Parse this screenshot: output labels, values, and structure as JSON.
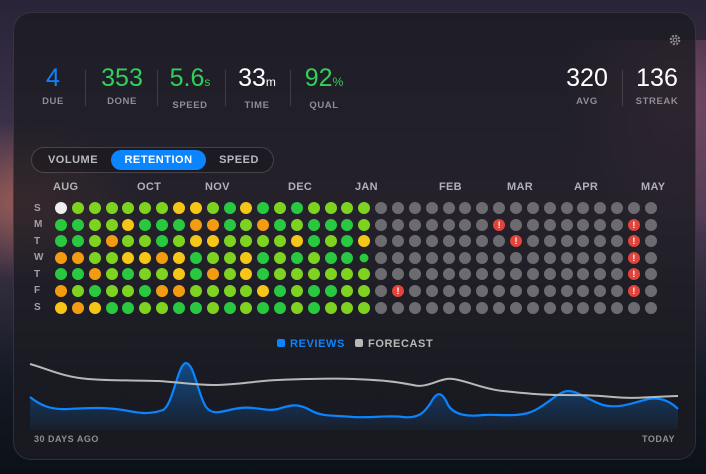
{
  "stats_left": [
    {
      "value": "4",
      "unit": "",
      "label": "DUE",
      "color": "#0a84ff"
    },
    {
      "value": "353",
      "unit": "",
      "label": "DONE",
      "color": "#30d158"
    },
    {
      "value": "5.6",
      "unit": "s",
      "label": "SPEED",
      "color": "#30d158"
    },
    {
      "value": "33",
      "unit": "m",
      "label": "TIME",
      "color": "#ffffff"
    },
    {
      "value": "92",
      "unit": "%",
      "label": "QUAL",
      "color": "#30d158"
    }
  ],
  "stats_right": [
    {
      "value": "320",
      "unit": "",
      "label": "AVG",
      "color": "#ffffff"
    },
    {
      "value": "136",
      "unit": "",
      "label": "STREAK",
      "color": "#ffffff"
    }
  ],
  "tabs": [
    {
      "label": "VOLUME",
      "active": false
    },
    {
      "label": "RETENTION",
      "active": true
    },
    {
      "label": "SPEED",
      "active": false
    }
  ],
  "months": [
    "AUG",
    "OCT",
    "NOV",
    "DEC",
    "JAN",
    "FEB",
    "MAR",
    "APR",
    "MAY"
  ],
  "weekdays": [
    "S",
    "M",
    "T",
    "W",
    "T",
    "F",
    "S"
  ],
  "heatmap": {
    "colors": {
      "w": "#eeeeee",
      "g": "#28c840",
      "l": "#7ed321",
      "y": "#f5c518",
      "o": "#f39c12",
      "x": "#6c6c70"
    },
    "rows": [
      "wllllllyylgyglgllllxxxxxxxxxxxxxxxxx",
      "ggllygggoogloglggglxxxxxxx!xxxxxxx!xxxxxxx",
      "gglollglyyllllyglgyxxxxxxxx!xxxxxx!xxxxxxx",
      "oollyyoygllyglglggGxxxxxxxxxxxxxxx!xxxxxxx",
      "ggolgllygolygllllllxxxxxxxxxxxxxxx!xxxxxxx",
      "olgllgoollllyglggllx!xxxxxxxxxxxxx!xxxxxxx",
      "yoyggllgglglgglglllxxxxxxxxxxxxxxxxxxxxxxx"
    ],
    "warning_symbol": "!"
  },
  "chart": {
    "legend": [
      {
        "label": "REVIEWS",
        "color": "#0a84ff"
      },
      {
        "label": "FORECAST",
        "color": "#b8b8b8"
      }
    ],
    "x_start_label": "30 DAYS AGO",
    "x_end_label": "TODAY",
    "icons": {
      "settings": "gear-icon"
    }
  }
}
